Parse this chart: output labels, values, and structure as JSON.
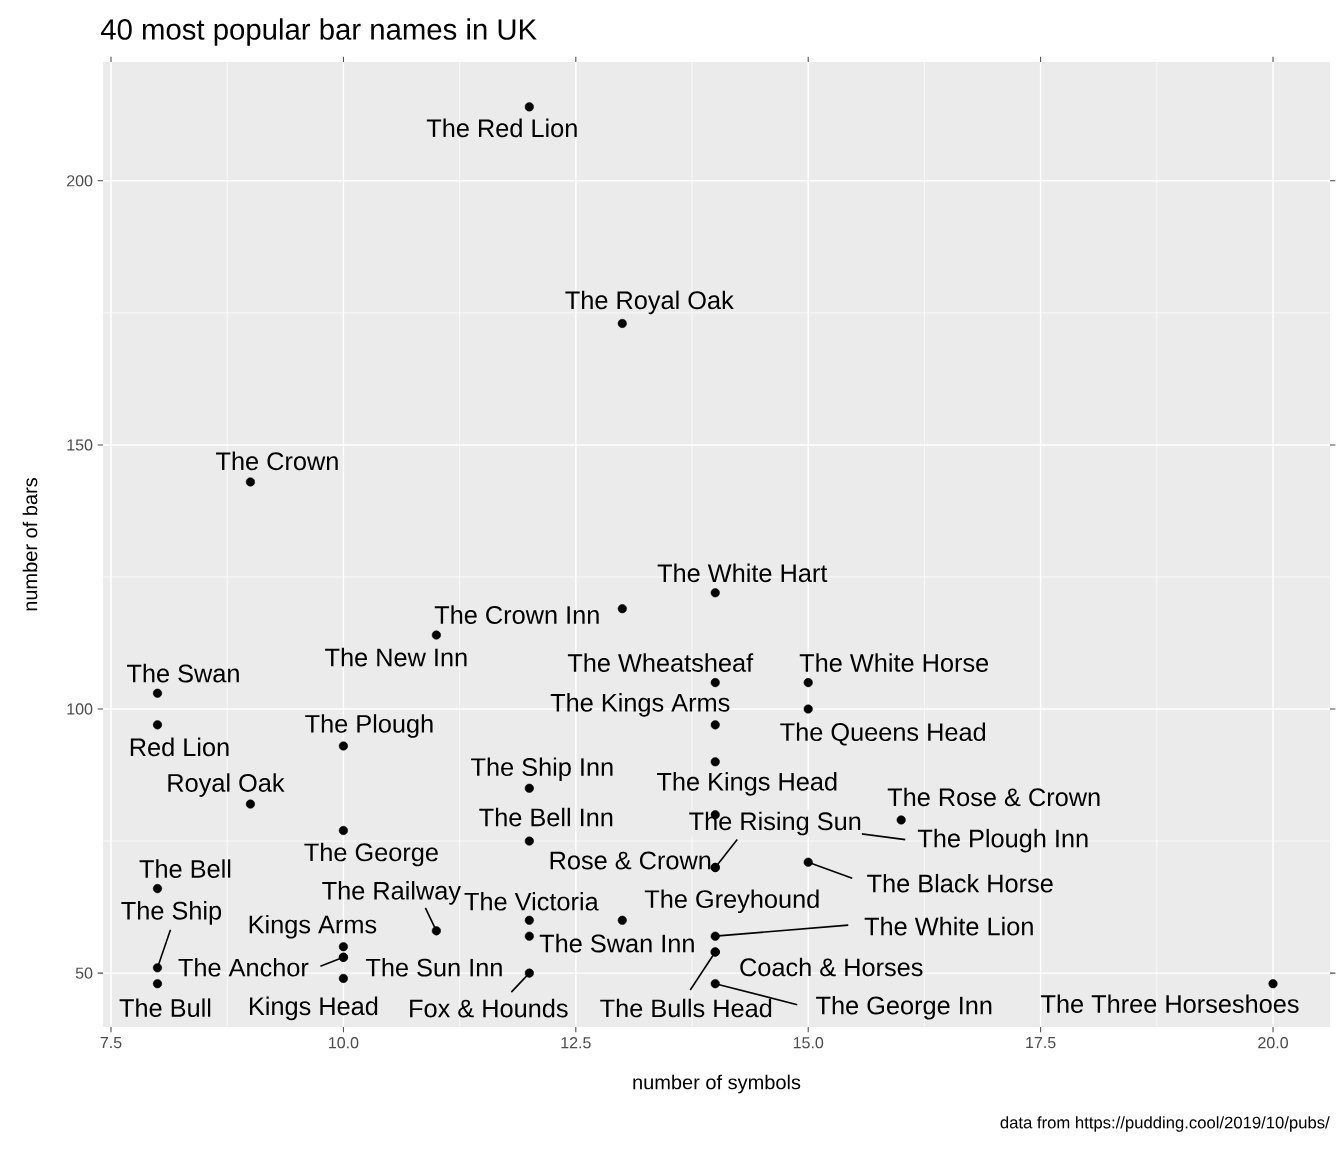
{
  "chart_data": {
    "type": "scatter",
    "title": "40 most popular bar names in UK",
    "xlabel": "number of symbols",
    "ylabel": "number of bars",
    "xlim": [
      7.414,
      20.613
    ],
    "ylim": [
      39.8,
      222.5
    ],
    "xticks": [
      {
        "value": 7.5,
        "label": "7.5"
      },
      {
        "value": 10,
        "label": "10.0"
      },
      {
        "value": 12.5,
        "label": "12.5"
      },
      {
        "value": 15,
        "label": "15.0"
      },
      {
        "value": 17.5,
        "label": "17.5"
      },
      {
        "value": 20,
        "label": "20.0"
      }
    ],
    "yticks": [
      50,
      100,
      150,
      200
    ],
    "grid": true,
    "marker": "circle",
    "series": [
      {
        "color": "#000000",
        "x": [
          12,
          13,
          9,
          14,
          13,
          11,
          8,
          14,
          15,
          15,
          8,
          14,
          10,
          14,
          12,
          9,
          14,
          16,
          10,
          12,
          14,
          14,
          15,
          8,
          13,
          12,
          11,
          12,
          14,
          10,
          14,
          10,
          10,
          8,
          12,
          14,
          14,
          8,
          10,
          20
        ],
        "values": [
          214,
          173,
          143,
          122,
          119,
          114,
          103,
          105,
          105,
          100,
          97,
          97,
          93,
          90,
          85,
          82,
          80,
          79,
          77,
          75,
          70,
          70,
          71,
          66,
          60,
          60,
          58,
          57,
          57,
          55,
          54,
          53,
          53,
          51,
          50,
          54,
          48,
          48,
          49,
          48
        ]
      }
    ],
    "annotations": [
      {
        "text": "The Red Lion",
        "x": 12,
        "y": 214
      },
      {
        "text": "The Royal Oak",
        "x": 13,
        "y": 173
      },
      {
        "text": "The Crown",
        "x": 9,
        "y": 143
      },
      {
        "text": "The White Hart",
        "x": 14,
        "y": 122
      },
      {
        "text": "The Crown Inn",
        "x": 13,
        "y": 119
      },
      {
        "text": "The New Inn",
        "x": 11,
        "y": 114
      },
      {
        "text": "The Swan",
        "x": 8,
        "y": 103
      },
      {
        "text": "The Wheatsheaf",
        "x": 14,
        "y": 105
      },
      {
        "text": "The White Horse",
        "x": 15,
        "y": 105
      },
      {
        "text": "The Queens Head",
        "x": 15,
        "y": 100
      },
      {
        "text": "Red Lion",
        "x": 8,
        "y": 97
      },
      {
        "text": "The Kings Arms",
        "x": 14,
        "y": 97
      },
      {
        "text": "The Plough",
        "x": 10,
        "y": 93
      },
      {
        "text": "The Kings Head",
        "x": 14,
        "y": 90
      },
      {
        "text": "The Ship Inn",
        "x": 12,
        "y": 85
      },
      {
        "text": "Royal Oak",
        "x": 9,
        "y": 82
      },
      {
        "text": "The Plough Inn",
        "x": 14,
        "y": 80
      },
      {
        "text": "The Rose & Crown",
        "x": 16,
        "y": 79
      },
      {
        "text": "The George",
        "x": 10,
        "y": 77
      },
      {
        "text": "The Bell Inn",
        "x": 12,
        "y": 75
      },
      {
        "text": "The Rising Sun",
        "x": 14,
        "y": 70
      },
      {
        "text": "Rose & Crown",
        "x": 14,
        "y": 70
      },
      {
        "text": "The Black Horse",
        "x": 15,
        "y": 71
      },
      {
        "text": "The Bell",
        "x": 8,
        "y": 66
      },
      {
        "text": "The Greyhound",
        "x": 13,
        "y": 60
      },
      {
        "text": "The Victoria",
        "x": 12,
        "y": 60
      },
      {
        "text": "The Railway",
        "x": 11,
        "y": 58
      },
      {
        "text": "The Swan Inn",
        "x": 12,
        "y": 57
      },
      {
        "text": "The White Lion",
        "x": 14,
        "y": 57
      },
      {
        "text": "Kings Arms",
        "x": 10,
        "y": 55
      },
      {
        "text": "Coach & Horses",
        "x": 14,
        "y": 54
      },
      {
        "text": "The Anchor",
        "x": 10,
        "y": 53
      },
      {
        "text": "The Sun Inn",
        "x": 10,
        "y": 53
      },
      {
        "text": "The Ship",
        "x": 8,
        "y": 51
      },
      {
        "text": "Fox & Hounds",
        "x": 12,
        "y": 50
      },
      {
        "text": "The Bulls Head",
        "x": 14,
        "y": 54
      },
      {
        "text": "The George Inn",
        "x": 14,
        "y": 48
      },
      {
        "text": "The Bull",
        "x": 8,
        "y": 48
      },
      {
        "text": "Kings Head",
        "x": 10,
        "y": 49
      },
      {
        "text": "The Three Horseshoes",
        "x": 20,
        "y": 48
      },
      "data from https://pudding.cool/2019/10/pubs/"
    ]
  }
}
